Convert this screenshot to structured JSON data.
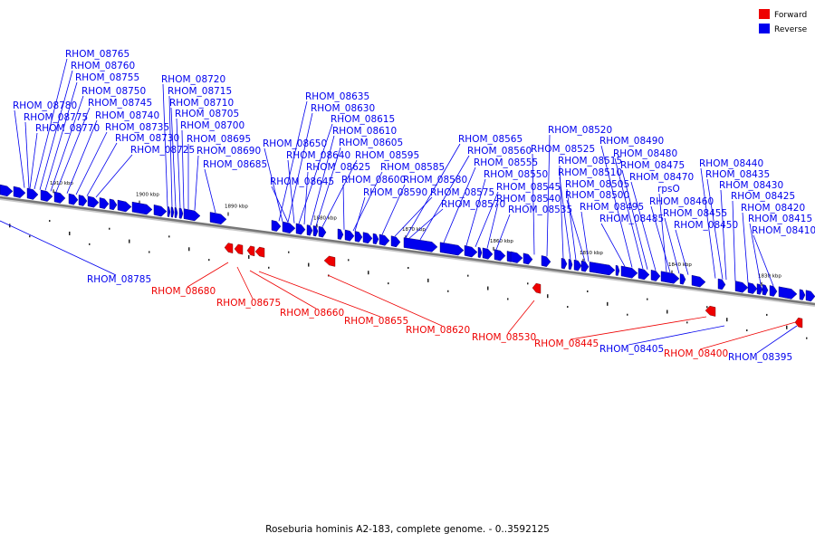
{
  "caption": "Roseburia hominis A2-183, complete genome. - 0..3592125",
  "legend": [
    {
      "label": "Forward",
      "color": "#ee0000"
    },
    {
      "label": "Reverse",
      "color": "#0000ee"
    }
  ],
  "colors": {
    "forward": "#ee0000",
    "reverse": "#0000ee",
    "backbone": "#777777"
  },
  "ticks": [
    "1910 kbp",
    "1900 kbp",
    "1890 kbp",
    "1880 kbp",
    "1870 kbp",
    "1860 kbp",
    "1850 kbp",
    "1840 kbp",
    "1830 kbp"
  ],
  "reverse_labels": [
    "RHOM_08765",
    "RHOM_08760",
    "RHOM_08755",
    "RHOM_08750",
    "RHOM_08745",
    "RHOM_08740",
    "RHOM_08735",
    "RHOM_08730",
    "RHOM_08725",
    "RHOM_08780",
    "RHOM_08775",
    "RHOM_08770",
    "RHOM_08720",
    "RHOM_08715",
    "RHOM_08710",
    "RHOM_08705",
    "RHOM_08700",
    "RHOM_08695",
    "RHOM_08690",
    "RHOM_08685",
    "RHOM_08635",
    "RHOM_08630",
    "RHOM_08615",
    "RHOM_08610",
    "RHOM_08605",
    "RHOM_08595",
    "RHOM_08585",
    "RHOM_08650",
    "RHOM_08640",
    "RHOM_08625",
    "RHOM_08600",
    "RHOM_08590",
    "RHOM_08645",
    "RHOM_08565",
    "RHOM_08560",
    "RHOM_08555",
    "RHOM_08550",
    "RHOM_08545",
    "RHOM_08540",
    "RHOM_08535",
    "RHOM_08580",
    "RHOM_08575",
    "RHOM_08570",
    "RHOM_08520",
    "RHOM_08525",
    "RHOM_08515",
    "RHOM_08510",
    "RHOM_08505",
    "RHOM_08500",
    "RHOM_08495",
    "RHOM_08485",
    "RHOM_08490",
    "RHOM_08480",
    "RHOM_08475",
    "RHOM_08470",
    "rpsO",
    "RHOM_08460",
    "RHOM_08455",
    "RHOM_08450",
    "RHOM_08440",
    "RHOM_08435",
    "RHOM_08430",
    "RHOM_08425",
    "RHOM_08420",
    "RHOM_08415",
    "RHOM_08410",
    "RHOM_08785",
    "RHOM_08405",
    "RHOM_08395"
  ],
  "forward_labels": [
    "RHOM_08680",
    "RHOM_08675",
    "RHOM_08660",
    "RHOM_08655",
    "RHOM_08620",
    "RHOM_08530",
    "RHOM_08445",
    "RHOM_08400"
  ]
}
